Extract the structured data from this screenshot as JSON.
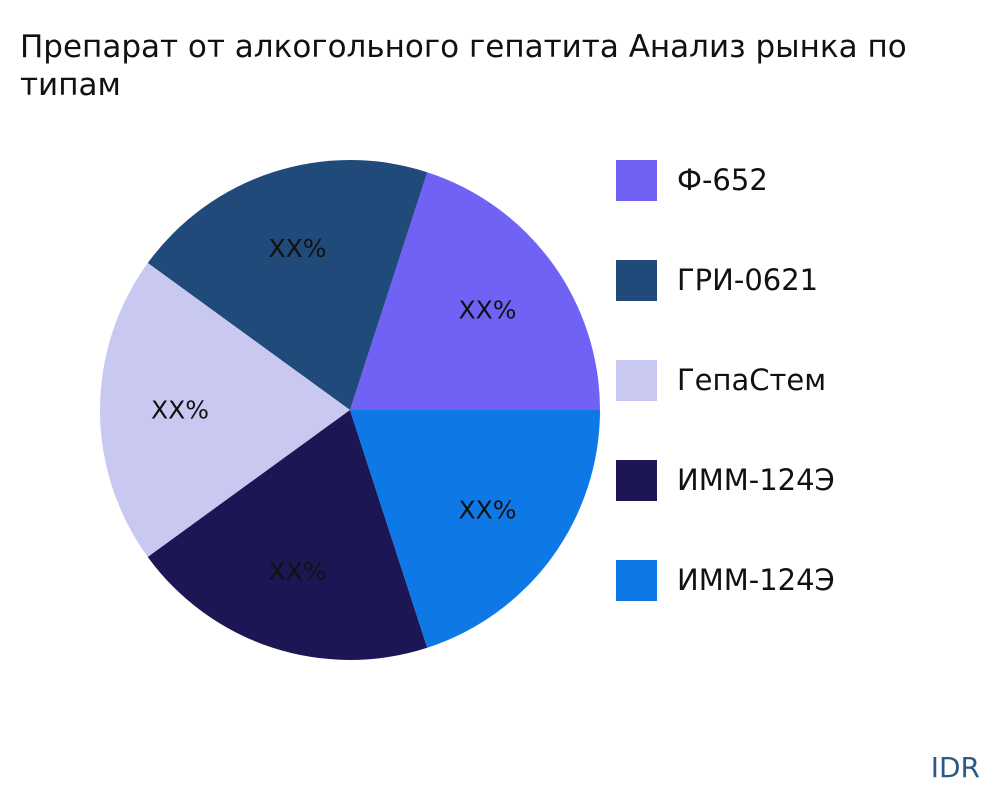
{
  "title": "Препарат от алкогольного гепатита Анализ рынка по типам",
  "brand": "IDR",
  "chart_data": {
    "type": "pie",
    "title": "Препарат от алкогольного гепатита Анализ рынка по типам",
    "start_angle_deg": 0,
    "direction": "counterclockwise",
    "legend_position": "right",
    "slices": [
      {
        "label": "Ф-652",
        "value": 20,
        "text": "XX%",
        "color": "#7062f5"
      },
      {
        "label": "ГРИ-0621",
        "value": 20,
        "text": "XX%",
        "color": "#1f4a7a"
      },
      {
        "label": "ГепаСтем",
        "value": 20,
        "text": "XX%",
        "color": "#c9c8f0"
      },
      {
        "label": "ИММ-124Э",
        "value": 20,
        "text": "XX%",
        "color": "#1c1654"
      },
      {
        "label": "ИММ-124Э",
        "value": 20,
        "text": "XX%",
        "color": "#0d78e6"
      }
    ]
  }
}
